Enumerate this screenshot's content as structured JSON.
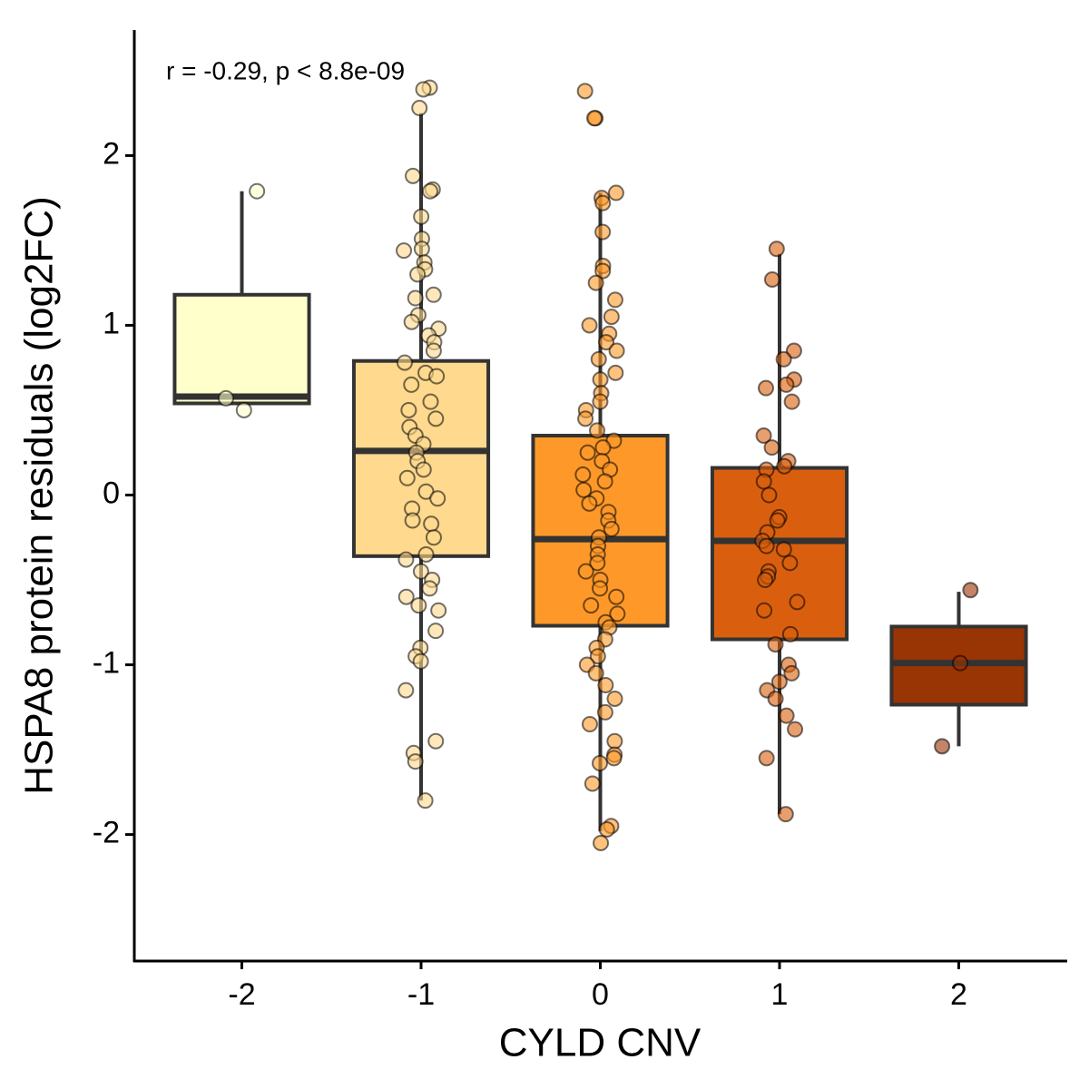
{
  "chart_data": {
    "type": "box",
    "annotation": "r =  -0.29,  p <  8.8e-09",
    "x_label": "CYLD CNV",
    "y_label": "HSPA8 protein residuals (log2FC)",
    "categories": [
      "-2",
      "-1",
      "0",
      "1",
      "2"
    ],
    "ylim": [
      -2.74,
      2.74
    ],
    "yticks": [
      -2,
      -1,
      0,
      1,
      2
    ],
    "boxes": [
      {
        "color": "#FFFFCC",
        "min": 0.54,
        "q1": 0.54,
        "median": 0.58,
        "q3": 1.18,
        "max": 1.79,
        "points": [
          1.79,
          0.57,
          0.5
        ]
      },
      {
        "color": "#FED98E",
        "min": -1.8,
        "q1": -0.36,
        "median": 0.26,
        "q3": 0.79,
        "max": 2.25,
        "points": [
          2.4,
          2.39,
          2.28,
          1.88,
          1.8,
          1.79,
          1.64,
          1.51,
          1.45,
          1.44,
          1.37,
          1.33,
          1.3,
          1.18,
          1.16,
          1.06,
          1.02,
          0.98,
          0.94,
          0.9,
          0.85,
          0.78,
          0.72,
          0.7,
          0.65,
          0.55,
          0.5,
          0.45,
          0.4,
          0.35,
          0.3,
          0.25,
          0.2,
          0.15,
          0.1,
          0.02,
          -0.02,
          -0.08,
          -0.15,
          -0.17,
          -0.25,
          -0.35,
          -0.38,
          -0.45,
          -0.5,
          -0.55,
          -0.6,
          -0.65,
          -0.68,
          -0.8,
          -0.9,
          -0.95,
          -0.98,
          -1.15,
          -1.45,
          -1.52,
          -1.57,
          -1.8
        ]
      },
      {
        "color": "#FE9929",
        "min": -1.98,
        "q1": -0.77,
        "median": -0.26,
        "q3": 0.35,
        "max": 1.78,
        "points": [
          2.38,
          2.22,
          2.22,
          1.78,
          1.75,
          1.72,
          1.55,
          1.35,
          1.32,
          1.25,
          1.15,
          1.05,
          1.0,
          0.95,
          0.9,
          0.85,
          0.8,
          0.72,
          0.68,
          0.6,
          0.55,
          0.5,
          0.45,
          0.38,
          0.32,
          0.28,
          0.25,
          0.2,
          0.15,
          0.12,
          0.08,
          0.03,
          -0.02,
          -0.05,
          -0.1,
          -0.15,
          -0.2,
          -0.25,
          -0.3,
          -0.35,
          -0.4,
          -0.45,
          -0.5,
          -0.55,
          -0.6,
          -0.65,
          -0.7,
          -0.75,
          -0.78,
          -0.85,
          -0.9,
          -0.95,
          -1.0,
          -1.05,
          -1.12,
          -1.2,
          -1.28,
          -1.35,
          -1.45,
          -1.53,
          -1.55,
          -1.58,
          -1.7,
          -1.95,
          -1.97,
          -2.05
        ]
      },
      {
        "color": "#D95F0E",
        "min": -1.88,
        "q1": -0.85,
        "median": -0.27,
        "q3": 0.16,
        "max": 1.42,
        "points": [
          1.45,
          1.27,
          0.85,
          0.8,
          0.68,
          0.65,
          0.63,
          0.55,
          0.35,
          0.28,
          0.2,
          0.17,
          0.15,
          0.08,
          0.0,
          -0.13,
          -0.15,
          -0.22,
          -0.27,
          -0.3,
          -0.32,
          -0.4,
          -0.45,
          -0.48,
          -0.5,
          -0.63,
          -0.68,
          -0.82,
          -0.88,
          -1.0,
          -1.05,
          -1.1,
          -1.15,
          -1.2,
          -1.3,
          -1.38,
          -1.55,
          -1.88
        ]
      },
      {
        "color": "#993404",
        "min": -1.48,
        "q1": -1.235,
        "median": -0.99,
        "q3": -0.775,
        "max": -0.57,
        "points": [
          -0.56,
          -0.99,
          -1.48
        ]
      }
    ]
  }
}
